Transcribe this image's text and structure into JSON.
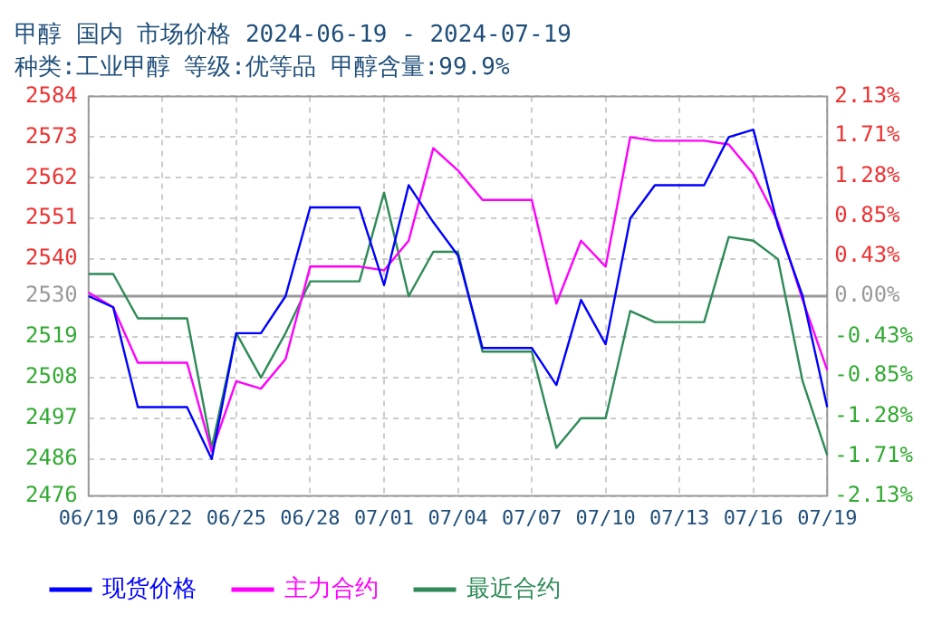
{
  "chart_data": {
    "type": "line",
    "title": "甲醇 国内 市场价格 2024-06-19 - 2024-07-19",
    "subtitle": "种类:工业甲醇 等级:优等品 甲醇含量:99.9%",
    "categories": [
      "06/19",
      null,
      null,
      "06/22",
      null,
      null,
      "06/25",
      null,
      null,
      "06/28",
      null,
      null,
      "07/01",
      null,
      null,
      "07/04",
      null,
      null,
      "07/07",
      null,
      null,
      "07/10",
      null,
      null,
      "07/13",
      null,
      null,
      "07/16",
      null,
      null,
      "07/19"
    ],
    "series": [
      {
        "name": "现货价格",
        "color": "#0000ff",
        "values": [
          2530,
          2527,
          2500,
          2500,
          2500,
          2486,
          2520,
          2520,
          2530,
          2554,
          2554,
          2554,
          2533,
          2560,
          2550,
          2541,
          2516,
          2516,
          2516,
          2506,
          2529,
          2517,
          2551,
          2560,
          2560,
          2560,
          2573,
          2575,
          2549,
          2530,
          2500
        ]
      },
      {
        "name": "主力合约",
        "color": "#ff00ff",
        "values": [
          2531,
          2527,
          2512,
          2512,
          2512,
          2488,
          2507,
          2505,
          2513,
          2538,
          2538,
          2538,
          2537,
          2545,
          2570,
          2564,
          2556,
          2556,
          2556,
          2528,
          2545,
          2538,
          2573,
          2572,
          2572,
          2572,
          2571,
          2563,
          2550,
          2529,
          2510
        ]
      },
      {
        "name": "最近合约",
        "color": "#2e8b57",
        "values": [
          2536,
          2536,
          2524,
          2524,
          2524,
          2489,
          2520,
          2508,
          2520,
          2534,
          2534,
          2534,
          2558,
          2530,
          2542,
          2542,
          2515,
          2515,
          2515,
          2489,
          2497,
          2497,
          2526,
          2523,
          2523,
          2523,
          2546,
          2545,
          2540,
          2507,
          2487
        ]
      }
    ],
    "ylim": [
      2476,
      2584
    ],
    "yticks": [
      2476,
      2486,
      2497,
      2508,
      2519,
      2530,
      2540,
      2551,
      2562,
      2573,
      2584
    ],
    "y2lim": [
      -2.13,
      2.13
    ],
    "y2ticks": [
      {
        "value": -2.13,
        "label": "-2.13%"
      },
      {
        "value": -1.71,
        "label": "-1.71%"
      },
      {
        "value": -1.28,
        "label": "-1.28%"
      },
      {
        "value": -0.85,
        "label": "-0.85%"
      },
      {
        "value": -0.43,
        "label": "-0.43%"
      },
      {
        "value": 0,
        "label": "0.00%"
      },
      {
        "value": 0.43,
        "label": "0.43%"
      },
      {
        "value": 0.85,
        "label": "0.85%"
      },
      {
        "value": 1.28,
        "label": "1.28%"
      },
      {
        "value": 1.71,
        "label": "1.71%"
      },
      {
        "value": 2.13,
        "label": "2.13%"
      }
    ],
    "ref_lines": [
      {
        "axis": "y",
        "value": 2530,
        "color": "#999999",
        "line_style": "solid"
      }
    ],
    "grid": true,
    "legend": "bottom",
    "marker": "none",
    "line_style": "solid"
  }
}
